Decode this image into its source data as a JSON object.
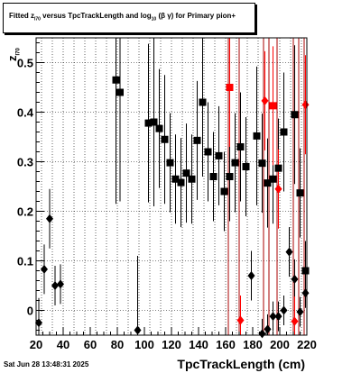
{
  "title": {
    "prefix": "Fitted  z",
    "z_sub": "I70",
    "middle": "  versus TpcTrackLength and log",
    "log_sub": "10",
    "suffix": "(β  γ) for Primary pion+"
  },
  "timestamp": "Sat Jun 28 13:48:31 2025",
  "colors": {
    "black": "#000000",
    "red": "#ff0000",
    "line_red": "#aa0000"
  },
  "chart_data": {
    "type": "scatter",
    "xlabel": "TpcTrackLength (cm)",
    "ylabel": "z",
    "ylabel_sub": "I70",
    "xlim": [
      20,
      220
    ],
    "ylim": [
      -0.05,
      0.55
    ],
    "x_ticks": [
      20,
      40,
      60,
      80,
      100,
      120,
      140,
      160,
      180,
      200,
      220
    ],
    "y_ticks": [
      0,
      0.1,
      0.2,
      0.3,
      0.4,
      0.5
    ],
    "y_tick_labels": [
      "0",
      "0.1",
      "0.2",
      "0.3",
      "0.4",
      "0.5"
    ],
    "grid": true,
    "vertical_lines_red": [
      162,
      170,
      188,
      192,
      198,
      210,
      214,
      218
    ],
    "series": [
      {
        "marker": "square",
        "color": "#000000",
        "points": [
          {
            "x": 79,
            "y": 0.465,
            "err": 0.25
          },
          {
            "x": 82,
            "y": 0.44,
            "err": 0.22
          },
          {
            "x": 103,
            "y": 0.378,
            "err": 0.16
          },
          {
            "x": 107,
            "y": 0.38,
            "err": 0.17
          },
          {
            "x": 111,
            "y": 0.367,
            "err": 0.12
          },
          {
            "x": 115,
            "y": 0.345,
            "err": 0.13
          },
          {
            "x": 119,
            "y": 0.298,
            "err": 0.1
          },
          {
            "x": 123,
            "y": 0.265,
            "err": 0.09
          },
          {
            "x": 127,
            "y": 0.258,
            "err": 0.09
          },
          {
            "x": 131,
            "y": 0.277,
            "err": 0.1
          },
          {
            "x": 135,
            "y": 0.265,
            "err": 0.09
          },
          {
            "x": 139,
            "y": 0.343,
            "err": 0.12
          },
          {
            "x": 143,
            "y": 0.42,
            "err": 0.15
          },
          {
            "x": 147,
            "y": 0.32,
            "err": 0.1
          },
          {
            "x": 151,
            "y": 0.27,
            "err": 0.09
          },
          {
            "x": 155,
            "y": 0.312,
            "err": 0.1
          },
          {
            "x": 159,
            "y": 0.24,
            "err": 0.08
          },
          {
            "x": 163,
            "y": 0.27,
            "err": 0.09
          },
          {
            "x": 167,
            "y": 0.298,
            "err": 0.1
          },
          {
            "x": 171,
            "y": 0.33,
            "err": 0.11
          },
          {
            "x": 175,
            "y": 0.29,
            "err": 0.1
          },
          {
            "x": 183,
            "y": 0.352,
            "err": 0.14
          },
          {
            "x": 187,
            "y": 0.297,
            "err": 0.1
          },
          {
            "x": 191,
            "y": 0.257,
            "err": 0.09
          },
          {
            "x": 195,
            "y": 0.265,
            "err": 0.09
          },
          {
            "x": 199,
            "y": 0.287,
            "err": 0.1
          },
          {
            "x": 203,
            "y": 0.36,
            "err": 0.12
          },
          {
            "x": 211,
            "y": 0.395,
            "err": 0.14
          },
          {
            "x": 215,
            "y": 0.237,
            "err": 0.09
          },
          {
            "x": 219,
            "y": 0.08,
            "err": 0.06
          }
        ]
      },
      {
        "marker": "diamond",
        "color": "#000000",
        "points": [
          {
            "x": 22,
            "y": -0.025,
            "err": 0.05
          },
          {
            "x": 26,
            "y": 0.083,
            "err": 0.05
          },
          {
            "x": 30,
            "y": 0.185,
            "err": 0.06
          },
          {
            "x": 34,
            "y": 0.05,
            "err": 0.04
          },
          {
            "x": 38,
            "y": 0.053,
            "err": 0.04
          },
          {
            "x": 95,
            "y": -0.04,
            "err": 0.15
          },
          {
            "x": 179,
            "y": 0.07,
            "err": 0.05
          },
          {
            "x": 187,
            "y": -0.047,
            "err": 0.03
          },
          {
            "x": 191,
            "y": -0.038,
            "err": 0.03
          },
          {
            "x": 195,
            "y": -0.012,
            "err": 0.03
          },
          {
            "x": 199,
            "y": -0.012,
            "err": 0.03
          },
          {
            "x": 203,
            "y": 0.0,
            "err": 0.03
          },
          {
            "x": 207,
            "y": 0.118,
            "err": 0.05
          },
          {
            "x": 211,
            "y": 0.063,
            "err": 0.04
          },
          {
            "x": 215,
            "y": -0.003,
            "err": 0.03
          },
          {
            "x": 219,
            "y": 0.035,
            "err": 0.03
          }
        ]
      },
      {
        "marker": "square",
        "color": "#ff0000",
        "points": [
          {
            "x": 163,
            "y": 0.45,
            "err": 0.12
          },
          {
            "x": 195,
            "y": 0.413,
            "err": 0.12
          }
        ]
      },
      {
        "marker": "diamond",
        "color": "#ff0000",
        "points": [
          {
            "x": 171,
            "y": -0.02,
            "err": 0.05
          },
          {
            "x": 189,
            "y": 0.423,
            "err": 0.1
          },
          {
            "x": 199,
            "y": 0.245,
            "err": 0.08
          },
          {
            "x": 211,
            "y": -0.022,
            "err": 0.05
          },
          {
            "x": 219,
            "y": 0.415,
            "err": 0.1
          }
        ]
      }
    ]
  }
}
